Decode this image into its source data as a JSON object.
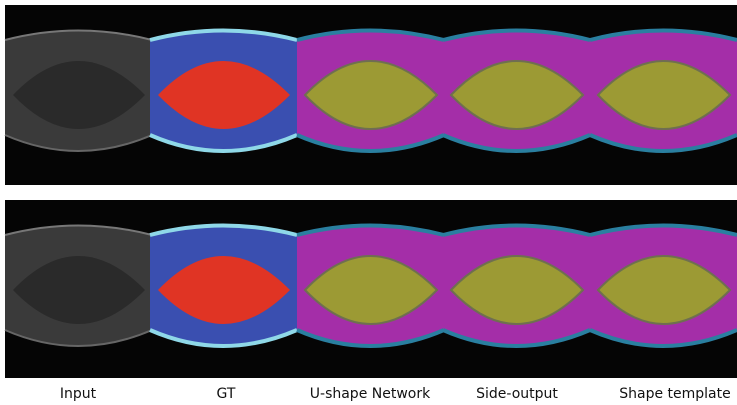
{
  "labels": [
    "Input",
    "GT",
    "U-shape Network",
    "Side-output",
    "Shape template"
  ]
}
